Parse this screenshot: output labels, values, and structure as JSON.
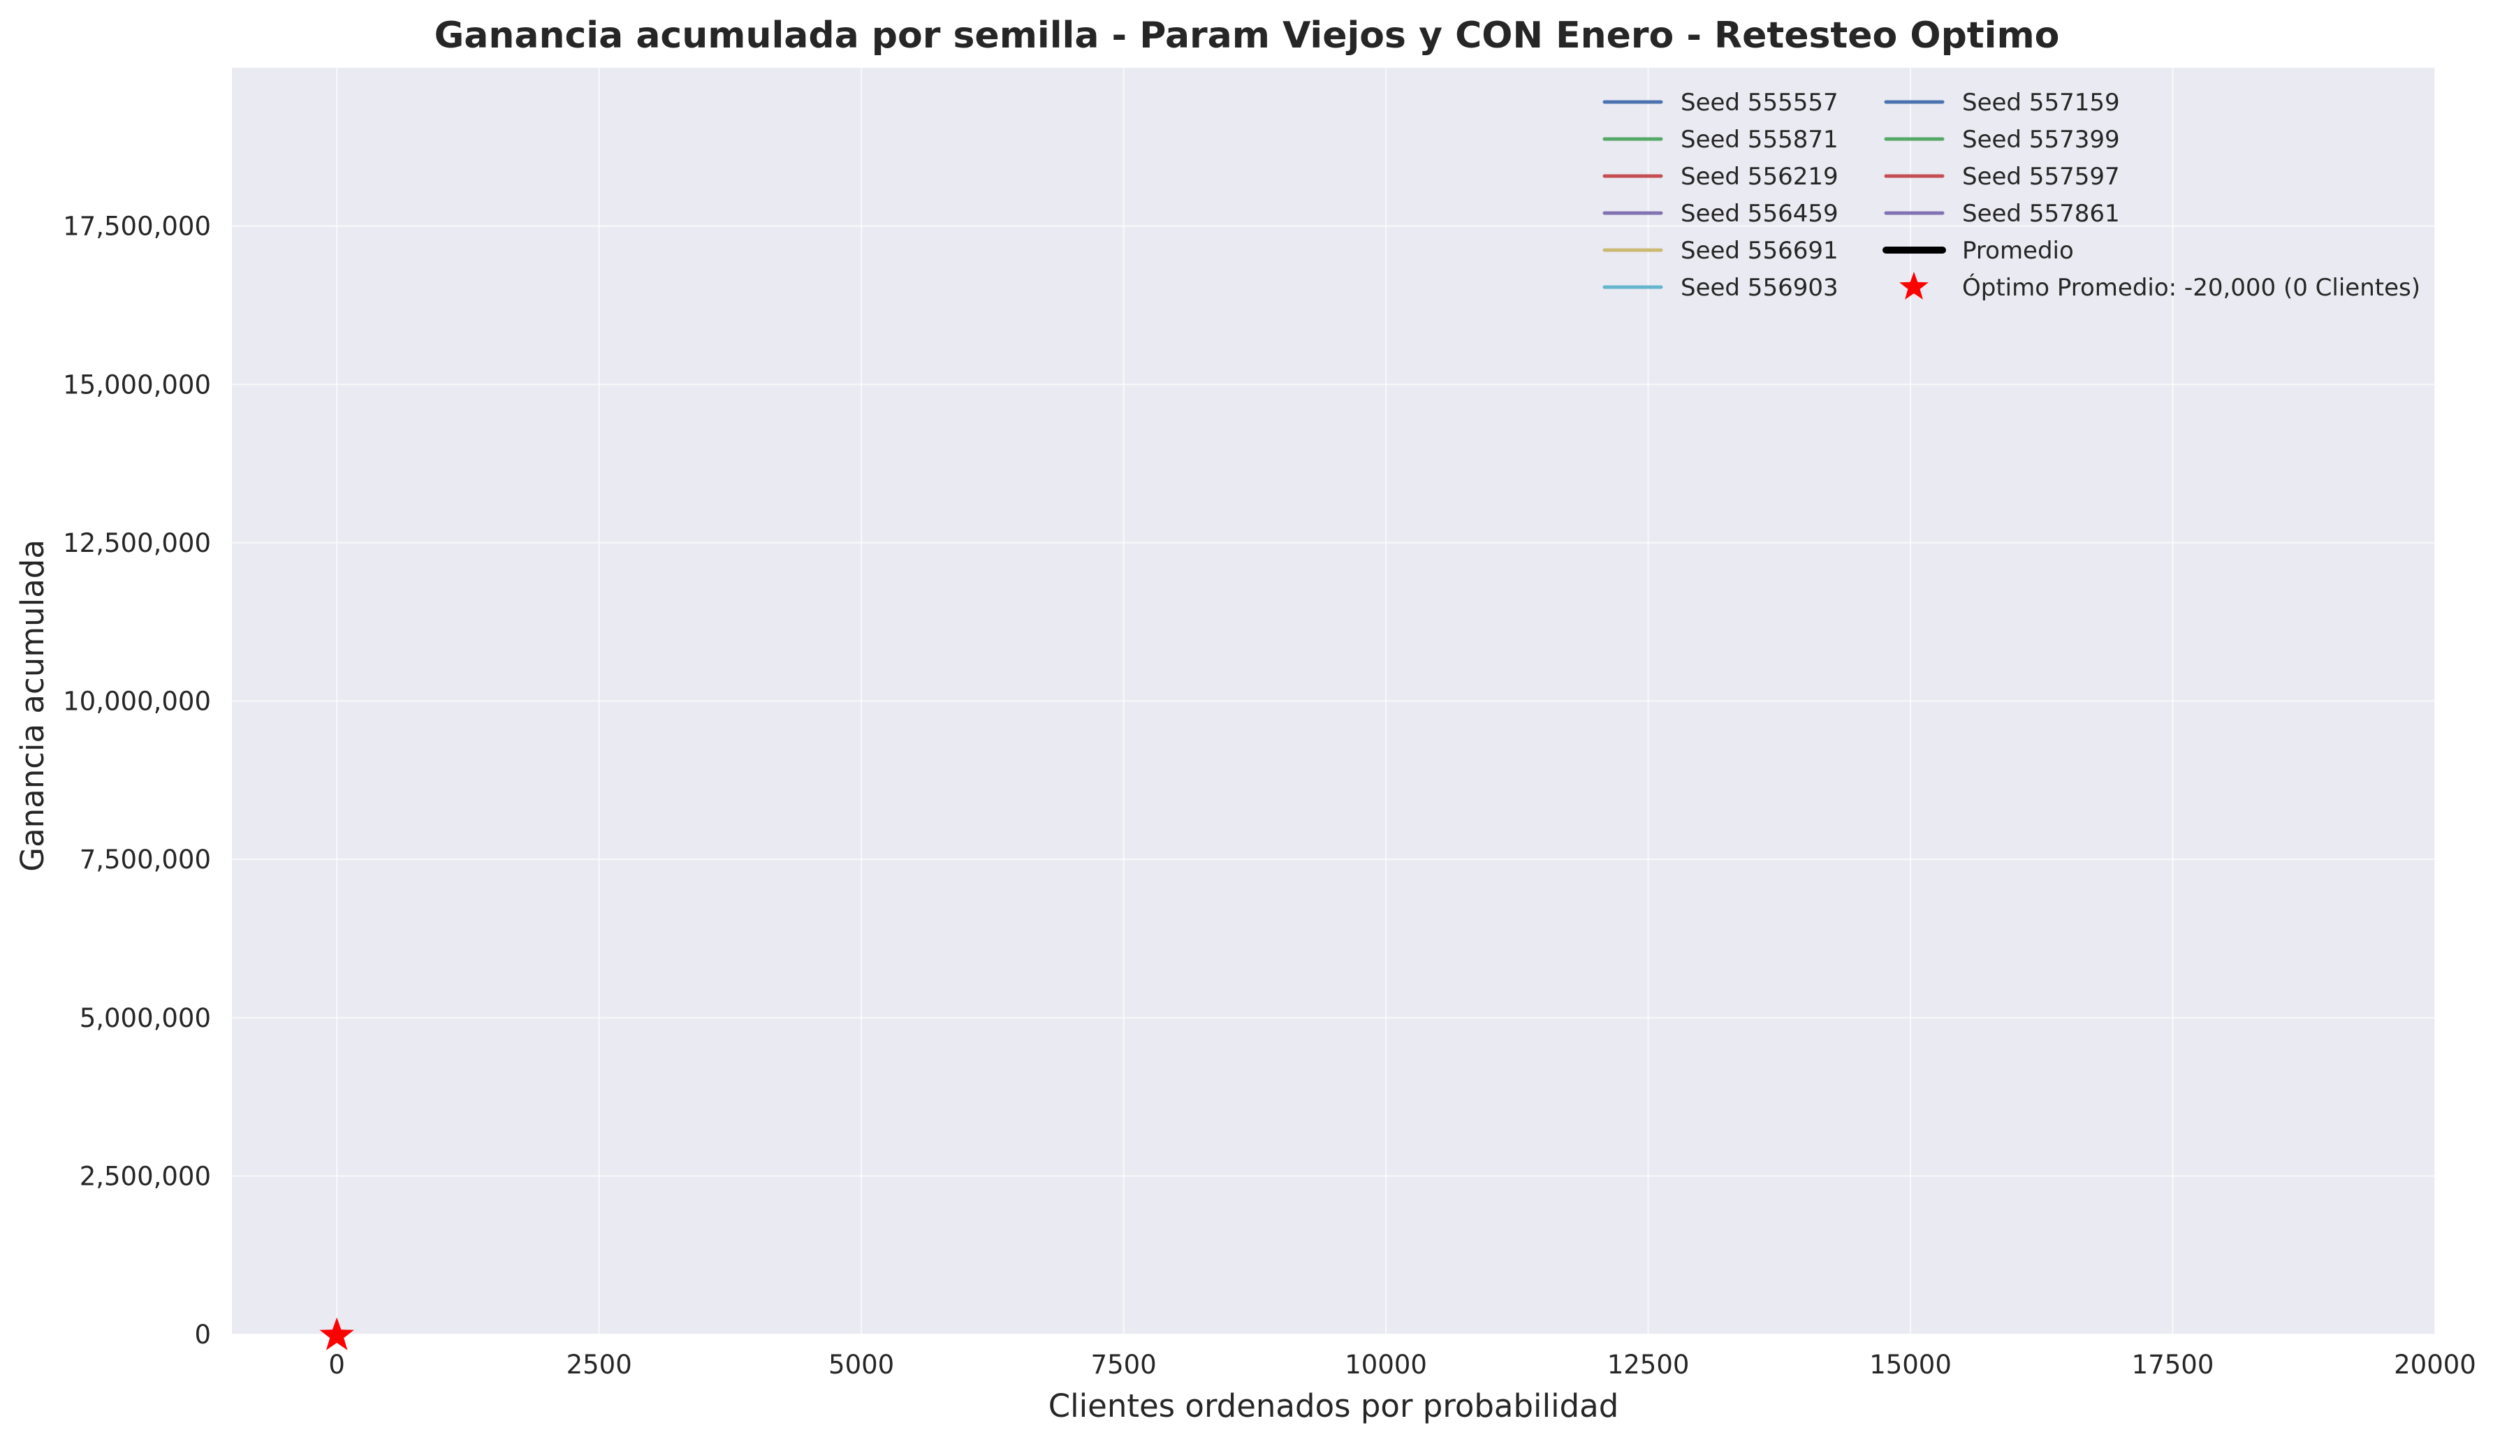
{
  "chart_data": {
    "type": "line",
    "title": "Ganancia acumulada por semilla - Param Viejos y CON Enero - Retesteo Optimo",
    "xlabel": "Clientes ordenados por probabilidad",
    "ylabel": "Ganancia acumulada",
    "xlim": [
      -1000,
      20000
    ],
    "ylim": [
      0,
      20000000
    ],
    "x_ticks": [
      0,
      2500,
      5000,
      7500,
      10000,
      12500,
      15000,
      17500,
      20000
    ],
    "x_tick_labels": [
      "0",
      "2500",
      "5000",
      "7500",
      "10000",
      "12500",
      "15000",
      "17500",
      "20000"
    ],
    "y_ticks": [
      0,
      2500000,
      5000000,
      7500000,
      10000000,
      12500000,
      15000000,
      17500000
    ],
    "y_tick_labels": [
      "0",
      "2,500,000",
      "5,000,000",
      "7,500,000",
      "10,000,000",
      "12,500,000",
      "15,000,000",
      "17,500,000"
    ],
    "grid": true,
    "legend_position": "top-right",
    "legend_columns": 2,
    "series": [
      {
        "name": "Seed 555557",
        "color": "#4c72b0",
        "x": [],
        "values": []
      },
      {
        "name": "Seed 555871",
        "color": "#55a868",
        "x": [],
        "values": []
      },
      {
        "name": "Seed 556219",
        "color": "#c44e52",
        "x": [],
        "values": []
      },
      {
        "name": "Seed 556459",
        "color": "#8172b2",
        "x": [],
        "values": []
      },
      {
        "name": "Seed 556691",
        "color": "#ccb974",
        "x": [],
        "values": []
      },
      {
        "name": "Seed 556903",
        "color": "#64b5cd",
        "x": [],
        "values": []
      },
      {
        "name": "Seed 557159",
        "color": "#4c72b0",
        "x": [],
        "values": []
      },
      {
        "name": "Seed 557399",
        "color": "#55a868",
        "x": [],
        "values": []
      },
      {
        "name": "Seed 557597",
        "color": "#c44e52",
        "x": [],
        "values": []
      },
      {
        "name": "Seed 557861",
        "color": "#8172b2",
        "x": [],
        "values": []
      },
      {
        "name": "Promedio",
        "color": "#000000",
        "x": [],
        "values": []
      }
    ],
    "optimum": {
      "label": "Óptimo Promedio: -20,000 (0 Clientes)",
      "x": 0,
      "y": -20000,
      "color": "#ff0000",
      "marker": "star"
    },
    "colors": {
      "plot_background": "#eaeaf2",
      "grid": "#ffffff",
      "text": "#262626"
    }
  }
}
